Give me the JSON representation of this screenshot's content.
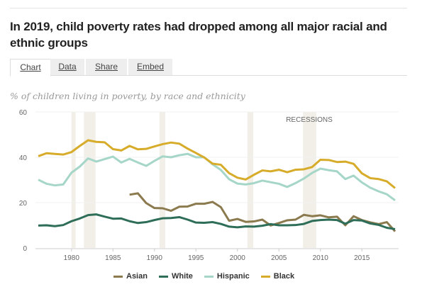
{
  "title": "In 2019, child poverty rates had dropped among all major racial and ethnic groups",
  "tabs": [
    {
      "label": "Chart",
      "active": true
    },
    {
      "label": "Data"
    },
    {
      "label": "Share"
    },
    {
      "label": "Embed"
    }
  ],
  "chart_data": {
    "type": "line",
    "title": "% of children living in poverty, by race and ethnicity",
    "xlabel": "",
    "ylabel": "",
    "xlim": [
      1976,
      2019
    ],
    "ylim": [
      0,
      60
    ],
    "yticks": [
      0,
      20,
      40,
      60
    ],
    "xticks": [
      1980,
      1985,
      1990,
      1995,
      2000,
      2005,
      2010,
      2015
    ],
    "annotation": "RECESSIONS",
    "recessions": [
      [
        1980,
        1980.5
      ],
      [
        1981.5,
        1982.9
      ],
      [
        1990.6,
        1991.3
      ],
      [
        2001.2,
        2001.9
      ],
      [
        2007.9,
        2009.5
      ]
    ],
    "start_year": 1976,
    "series": [
      {
        "name": "Asian",
        "color": "#8c7a4f",
        "start": 1987,
        "values": [
          23.5,
          24.1,
          19.8,
          17.6,
          17.5,
          16.4,
          18.2,
          18.3,
          19.5,
          19.5,
          20.3,
          18,
          12,
          12.8,
          11.5,
          11.7,
          12.5,
          9.9,
          11,
          12.2,
          12.5,
          14.6,
          14,
          14.4,
          13.5,
          13.8,
          10,
          14,
          12.3,
          11.3,
          10.5,
          11.4,
          7.3
        ]
      },
      {
        "name": "White",
        "color": "#2e6e58",
        "start": 1976,
        "values": [
          9.9,
          10,
          9.6,
          10.1,
          11.8,
          13,
          14.5,
          14.8,
          13.8,
          12.9,
          13,
          11.8,
          11,
          11.4,
          12.3,
          13.1,
          13.2,
          13.6,
          12.5,
          11.2,
          11.1,
          11.4,
          10.6,
          9.4,
          9.1,
          9.5,
          9.4,
          9.8,
          10.5,
          10,
          10,
          10.1,
          10.6,
          11.9,
          12.3,
          12.5,
          12.3,
          10.7,
          12.3,
          12.1,
          10.8,
          10.2,
          8.9,
          8.3
        ]
      },
      {
        "name": "Hispanic",
        "color": "#a5d6c8",
        "start": 1976,
        "values": [
          30.1,
          28.3,
          27.6,
          28,
          33.2,
          35.9,
          39.5,
          38.1,
          39.2,
          40.3,
          37.7,
          39.3,
          37.7,
          36.2,
          38.4,
          40.4,
          40,
          40.9,
          41.5,
          40,
          40,
          36.9,
          34.4,
          30.3,
          28.4,
          28,
          28.6,
          29.7,
          29,
          28.3,
          26.9,
          28.6,
          30.6,
          33.1,
          35,
          34.3,
          33.8,
          30.4,
          31.9,
          28.9,
          26.6,
          25,
          23.7,
          21
        ]
      },
      {
        "name": "Black",
        "color": "#d7ac2b",
        "start": 1976,
        "values": [
          40.5,
          41.8,
          41.5,
          41.2,
          42.3,
          45,
          47.5,
          46.8,
          46.6,
          43.6,
          43,
          45,
          43.5,
          43.7,
          44.8,
          45.8,
          46.5,
          46,
          43.8,
          41.9,
          39.9,
          37.2,
          36.7,
          33,
          31,
          30.2,
          32.3,
          34.2,
          33.8,
          34.5,
          33.4,
          34.5,
          34.7,
          35.7,
          38.9,
          38.8,
          37.9,
          38.1,
          37.1,
          32.9,
          30.8,
          30.4,
          29.4,
          26.4
        ]
      }
    ]
  }
}
